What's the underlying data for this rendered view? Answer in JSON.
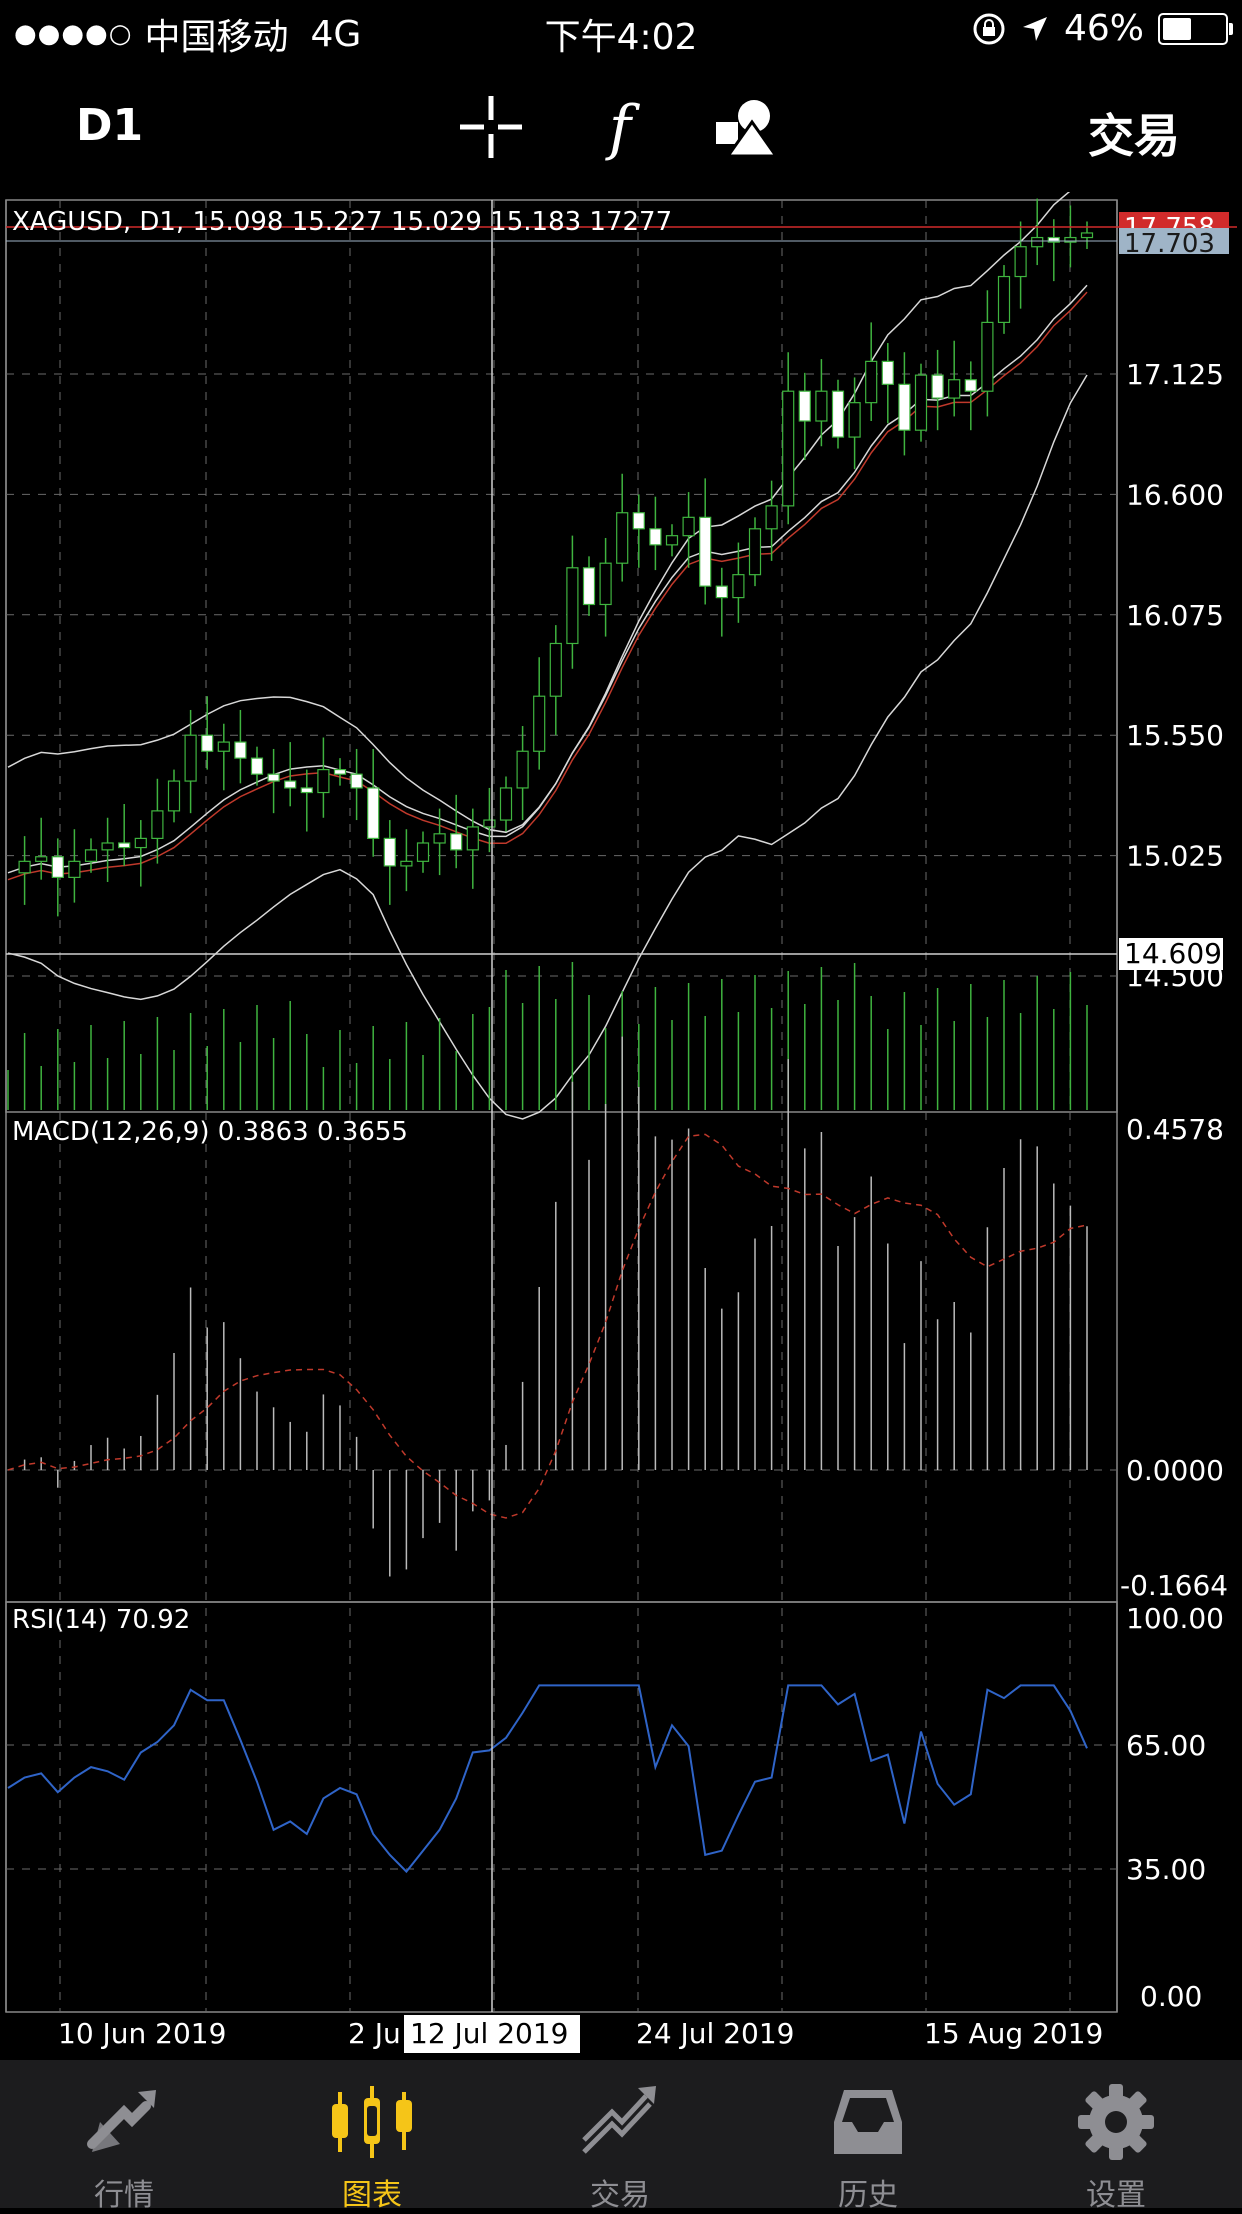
{
  "status_bar": {
    "carrier": "中国移动",
    "network": "4G",
    "time": "下午4:02",
    "battery": "46%",
    "battery_fraction": 0.46
  },
  "toolbar": {
    "period": "D1",
    "trade_label": "交易",
    "icons": [
      "crosshair-icon",
      "function-icon",
      "objects-icon"
    ]
  },
  "chart": {
    "header": "XAGUSD, D1, 15.098 15.227 15.029 15.183 17277",
    "price_axis": [
      "17.125",
      "16.600",
      "16.075",
      "15.550",
      "15.025",
      "14.500"
    ],
    "ask_label": "17.758",
    "bid_label": "17.703",
    "crosshair_label": "14.609",
    "macd_label": "MACD(12,26,9) 0.3863 0.3655",
    "macd_axis": [
      "0.4578",
      "0.0000",
      "-0.1664"
    ],
    "rsi_label": "RSI(14) 70.92",
    "rsi_axis": [
      "100.00",
      "65.00",
      "35.00",
      "0.00"
    ],
    "time_axis": [
      "10 Jun 2019",
      "2 Ju",
      "24 Jul 2019",
      "15 Aug 2019"
    ],
    "crosshair_date": "12 Jul 2019",
    "colors": {
      "bull": "#3fb43f",
      "bear_fill": "#ffffff",
      "ma_red": "#c0392b",
      "rsi": "#2f64c8",
      "ask": "#d12b2b",
      "bid": "#9fb4c7",
      "grid": "#6a6a6a"
    }
  },
  "tabs": [
    {
      "label": "行情",
      "icon": "quotes-icon",
      "active": false
    },
    {
      "label": "图表",
      "icon": "chart-icon",
      "active": true
    },
    {
      "label": "交易",
      "icon": "trade-icon",
      "active": false
    },
    {
      "label": "历史",
      "icon": "history-icon",
      "active": false
    },
    {
      "label": "设置",
      "icon": "settings-icon",
      "active": false
    }
  ]
}
